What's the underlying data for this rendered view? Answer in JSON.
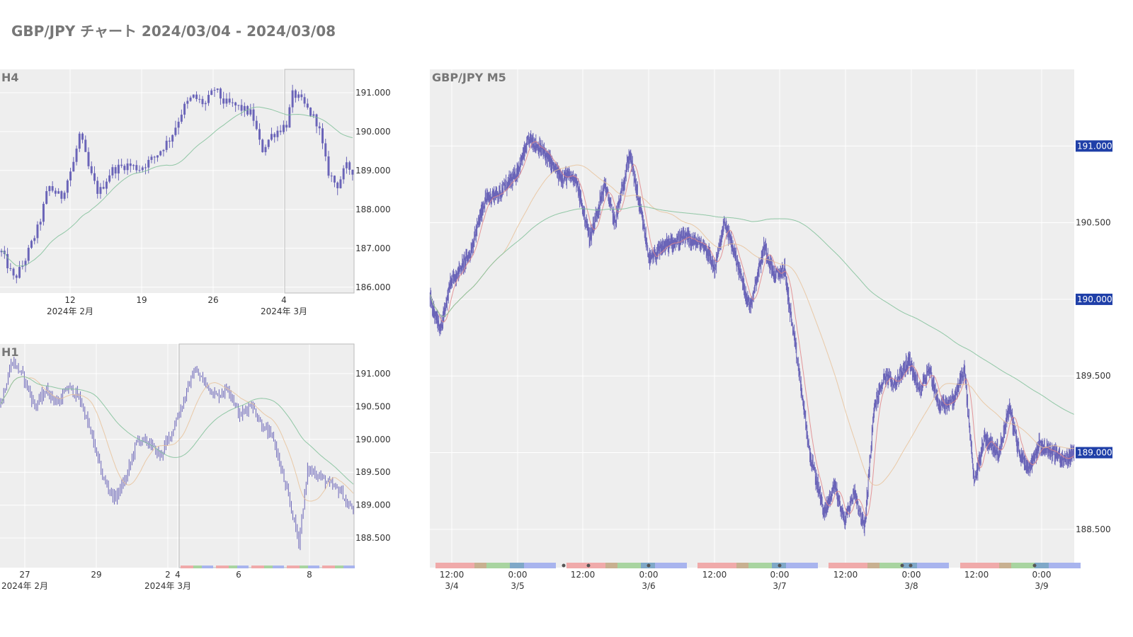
{
  "page": {
    "title": "GBP/JPY チャート 2024/03/04 - 2024/03/08"
  },
  "colors": {
    "candle": "#6a64b8",
    "plot_bg": "#eeeeee",
    "grid": "#ffffff",
    "ma_short": "#e0868a",
    "ma_mid": "#e8c29a",
    "ma_long": "#7fbf98",
    "price_badge": "#1f3fa8",
    "text": "#333333",
    "title_text": "#777777"
  },
  "chart_data": [
    {
      "id": "h4",
      "type": "candlestick",
      "title": "H4",
      "ylim": [
        185.85,
        191.6
      ],
      "y_ticks": [
        186.0,
        187.0,
        188.0,
        189.0,
        190.0,
        191.0
      ],
      "y_tick_labels": [
        "186.000",
        "187.000",
        "188.000",
        "189.000",
        "190.000",
        "191.000"
      ],
      "x_ticks": [
        {
          "label": "12",
          "sub": "2024年 2月"
        },
        {
          "label": "19",
          "sub": ""
        },
        {
          "label": "26",
          "sub": ""
        },
        {
          "label": "4",
          "sub": "2024年 3月"
        }
      ],
      "highlight": "2024/03/04 - 2024/03/08",
      "anchors": [
        [
          0,
          186.9
        ],
        [
          4,
          186.2
        ],
        [
          7,
          186.6
        ],
        [
          12,
          187.6
        ],
        [
          15,
          188.6
        ],
        [
          19,
          188.3
        ],
        [
          23,
          189.2
        ],
        [
          25,
          189.95
        ],
        [
          28,
          189.0
        ],
        [
          31,
          188.4
        ],
        [
          35,
          189.0
        ],
        [
          40,
          189.15
        ],
        [
          44,
          189.05
        ],
        [
          49,
          189.35
        ],
        [
          54,
          189.85
        ],
        [
          58,
          190.6
        ],
        [
          61,
          190.9
        ],
        [
          65,
          190.7
        ],
        [
          68,
          191.1
        ],
        [
          71,
          190.75
        ],
        [
          75,
          190.65
        ],
        [
          80,
          190.45
        ],
        [
          83,
          189.5
        ],
        [
          86,
          189.9
        ],
        [
          91,
          190.2
        ],
        [
          93,
          191.0
        ],
        [
          96,
          190.75
        ],
        [
          101,
          190.2
        ],
        [
          104,
          189.0
        ],
        [
          107,
          188.6
        ],
        [
          110,
          189.1
        ],
        [
          112,
          189.0
        ]
      ]
    },
    {
      "id": "h1",
      "type": "candlestick",
      "title": "H1",
      "ylim": [
        188.05,
        191.45
      ],
      "y_ticks": [
        188.5,
        189.0,
        189.5,
        190.0,
        190.5,
        191.0
      ],
      "y_tick_labels": [
        "188.500",
        "189.000",
        "189.500",
        "190.000",
        "190.500",
        "191.000"
      ],
      "x_ticks": [
        {
          "label": "27",
          "sub": "2024年 2月"
        },
        {
          "label": "29",
          "sub": ""
        },
        {
          "label": "2",
          "sub": "2024年 3月"
        },
        {
          "label": "4",
          "sub": ""
        },
        {
          "label": "6",
          "sub": ""
        },
        {
          "label": "8",
          "sub": ""
        }
      ],
      "highlight": "2024/03/04 - 2024/03/08",
      "anchors": [
        [
          0,
          190.55
        ],
        [
          5,
          191.2
        ],
        [
          10,
          190.95
        ],
        [
          15,
          190.5
        ],
        [
          20,
          190.75
        ],
        [
          25,
          190.55
        ],
        [
          30,
          190.8
        ],
        [
          35,
          190.6
        ],
        [
          40,
          190.05
        ],
        [
          45,
          189.4
        ],
        [
          50,
          189.1
        ],
        [
          55,
          189.4
        ],
        [
          60,
          190.0
        ],
        [
          65,
          189.95
        ],
        [
          70,
          189.75
        ],
        [
          75,
          190.1
        ],
        [
          80,
          190.55
        ],
        [
          85,
          191.05
        ],
        [
          90,
          190.85
        ],
        [
          95,
          190.65
        ],
        [
          100,
          190.8
        ],
        [
          105,
          190.35
        ],
        [
          110,
          190.55
        ],
        [
          115,
          190.2
        ],
        [
          120,
          190.0
        ],
        [
          125,
          189.3
        ],
        [
          128,
          188.9
        ],
        [
          131,
          188.45
        ],
        [
          135,
          189.55
        ],
        [
          140,
          189.45
        ],
        [
          145,
          189.3
        ],
        [
          150,
          189.2
        ],
        [
          152,
          189.0
        ],
        [
          155,
          188.95
        ]
      ]
    },
    {
      "id": "m5",
      "type": "candlestick",
      "title": "GBP/JPY M5",
      "ylim": [
        188.25,
        191.5
      ],
      "y_ticks": [
        188.5,
        189.0,
        189.5,
        190.0,
        190.5,
        191.0
      ],
      "y_tick_labels": [
        "188.500",
        "189.000",
        "189.500",
        "190.000",
        "190.500",
        "191.000"
      ],
      "price_badges": [
        "191.000",
        "190.000",
        "189.000"
      ],
      "x_ticks": [
        {
          "label": "12:00",
          "sub": "3/4"
        },
        {
          "label": "0:00",
          "sub": "3/5"
        },
        {
          "label": "12:00",
          "sub": ""
        },
        {
          "label": "0:00",
          "sub": "3/6"
        },
        {
          "label": "12:00",
          "sub": ""
        },
        {
          "label": "0:00",
          "sub": "3/7"
        },
        {
          "label": "12:00",
          "sub": ""
        },
        {
          "label": "0:00",
          "sub": "3/8"
        },
        {
          "label": "12:00",
          "sub": ""
        },
        {
          "label": "0:00",
          "sub": "3/9"
        }
      ],
      "anchors": [
        [
          0,
          190.0
        ],
        [
          0.1,
          189.8
        ],
        [
          0.2,
          190.1
        ],
        [
          0.4,
          190.3
        ],
        [
          0.55,
          190.65
        ],
        [
          0.7,
          190.7
        ],
        [
          0.85,
          190.8
        ],
        [
          1.0,
          191.05
        ],
        [
          1.15,
          190.95
        ],
        [
          1.3,
          190.8
        ],
        [
          1.45,
          190.8
        ],
        [
          1.6,
          190.4
        ],
        [
          1.75,
          190.75
        ],
        [
          1.85,
          190.5
        ],
        [
          2.0,
          190.95
        ],
        [
          2.1,
          190.6
        ],
        [
          2.2,
          190.25
        ],
        [
          2.35,
          190.35
        ],
        [
          2.55,
          190.4
        ],
        [
          2.75,
          190.35
        ],
        [
          2.85,
          190.2
        ],
        [
          2.95,
          190.5
        ],
        [
          3.05,
          190.3
        ],
        [
          3.2,
          189.95
        ],
        [
          3.35,
          190.35
        ],
        [
          3.45,
          190.15
        ],
        [
          3.55,
          190.2
        ],
        [
          3.6,
          189.95
        ],
        [
          3.7,
          189.5
        ],
        [
          3.8,
          189.0
        ],
        [
          3.95,
          188.6
        ],
        [
          4.05,
          188.8
        ],
        [
          4.15,
          188.55
        ],
        [
          4.25,
          188.75
        ],
        [
          4.35,
          188.5
        ],
        [
          4.45,
          189.3
        ],
        [
          4.55,
          189.5
        ],
        [
          4.65,
          189.45
        ],
        [
          4.8,
          189.6
        ],
        [
          4.9,
          189.4
        ],
        [
          5.0,
          189.55
        ],
        [
          5.1,
          189.3
        ],
        [
          5.25,
          189.35
        ],
        [
          5.35,
          189.55
        ],
        [
          5.45,
          188.8
        ],
        [
          5.55,
          189.1
        ],
        [
          5.7,
          189.0
        ],
        [
          5.8,
          189.3
        ],
        [
          5.9,
          189.0
        ],
        [
          6.0,
          188.9
        ],
        [
          6.1,
          189.05
        ],
        [
          6.25,
          189.0
        ],
        [
          6.35,
          188.95
        ],
        [
          6.45,
          189.0
        ]
      ]
    }
  ]
}
